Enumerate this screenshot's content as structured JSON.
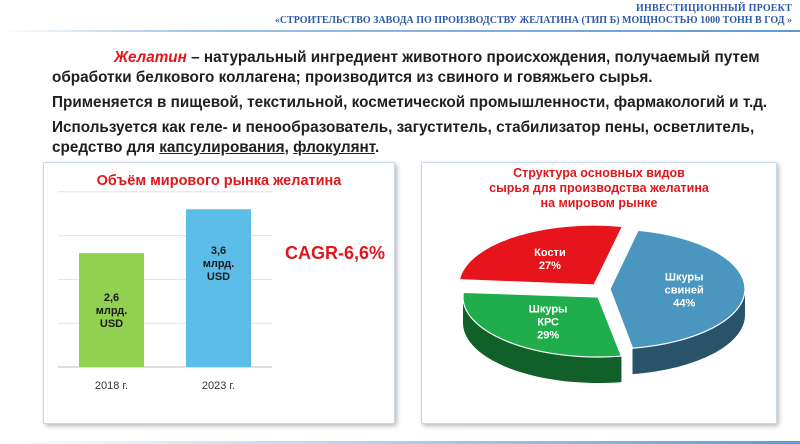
{
  "header": {
    "line1": "ИНВЕСТИЦИОННЫЙ ПРОЕКТ",
    "line2": "«СТРОИТЕЛЬСТВО  ЗАВОДА ПО ПРОИЗВОДСТВУ ЖЕЛАТИНА  (ТИП Б) МОЩНОСТЬЮ  1000 ТОНН В ГОД »"
  },
  "intro": {
    "term": "Желатин",
    "p1_rest": " – натуральный ингредиент животного происхождения, получаемый путем обработки белкового коллагена; производится из свиного и говяжьего сырья.",
    "p2": "Применяется в пищевой, текстильной, косметической промышленности, фармакологий и т.д.",
    "p3_a": "Используется как геле- и пенообразователь, загуститель, стабилизатор пены, осветлитель, средство для ",
    "p3_u1": "капсулирования",
    "p3_b": ", ",
    "p3_u2": "флокулянт",
    "p3_c": "."
  },
  "annotation": {
    "cagr": "CAGR-6,6%"
  },
  "chart_data": [
    {
      "type": "bar",
      "title": "Объём мирового рынка желатина",
      "categories": [
        "2018 г.",
        "2023 г."
      ],
      "values": [
        2.6,
        3.6
      ],
      "data_labels": [
        [
          "2,6",
          "млрд.",
          "USD"
        ],
        [
          "3,6",
          "млрд.",
          "USD"
        ]
      ],
      "colors": [
        "#92d050",
        "#5bbde8"
      ],
      "ylim": [
        0,
        4.2
      ],
      "grid": true
    },
    {
      "type": "pie",
      "title": [
        "Структура основных видов",
        "сырья для производства желатина",
        "на мировом рынке"
      ],
      "slices": [
        {
          "label": [
            "Шкуры",
            "свиней"
          ],
          "pct_label": "44%",
          "value": 44,
          "color": "#4a96bf"
        },
        {
          "label": [
            "Шкуры",
            "КРС"
          ],
          "pct_label": "29%",
          "value": 29,
          "color": "#1fae4b"
        },
        {
          "label": [
            "Кости"
          ],
          "pct_label": "27%",
          "value": 27,
          "color": "#e8141b"
        }
      ],
      "style": "3d-exploded"
    }
  ]
}
